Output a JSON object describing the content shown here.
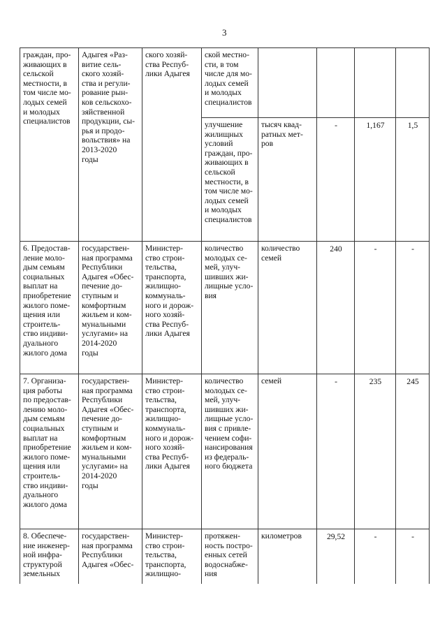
{
  "page_number": "3",
  "rows": [
    {
      "event": "граждан, про-\nживающих в\nсельской\nместности, в\nтом числе мо-\nлодых семей\nи молодых\nспециалистов",
      "program": "Адыгея «Раз-\nвитие сель-\nского хозяй-\nства и регули-\nрование рын-\nков сельскохо-\nзяйственной\nпродукции, сы-\nрья и продо-\nвольствия» на\n2013-2020\nгоды",
      "executor": "ского хозяй-\nства Респуб-\nлики Адыгея",
      "indicators": [
        {
          "name": "ской местно-\nсти, в том\nчисле для мо-\nлодых семей\nи молодых\nспециалистов",
          "unit": "",
          "v1": "",
          "v2": "",
          "v3": ""
        },
        {
          "name": "улучшение\nжилищных\nусловий\nграждан, про-\nживающих в\nсельской\nместности, в\nтом числе мо-\nлодых семей\nи молодых\nспециалистов",
          "unit": "тысяч квад-\nратных мет-\nров",
          "v1": "-",
          "v2": "1,167",
          "v3": "1,5"
        }
      ]
    },
    {
      "event": "6. Предостав-\nление моло-\nдым семьям\nсоциальных\nвыплат на\nприобретение\nжилого поме-\nщения или\nстроитель-\nство индиви-\nдуального\nжилого дома",
      "program": "государствен-\nная программа\nРеспублики\nАдыгея «Обес-\nпечение до-\nступным и\nкомфортным\nжильем и ком-\nмунальными\nуслугами» на\n2014-2020\nгоды",
      "executor": "Министер-\nство строи-\nтельства,\nтранспорта,\nжилищно-\nкоммуналь-\nного и дорож-\nного хозяй-\nства Респуб-\nлики Адыгея",
      "indicators": [
        {
          "name": "количество\nмолодых се-\nмей, улуч-\nшивших жи-\nлищные усло-\nвия",
          "unit": "количество\nсемей",
          "v1": "240",
          "v2": "-",
          "v3": "-"
        }
      ]
    },
    {
      "event": "7. Организа-\nция работы\nпо предостав-\nлению моло-\nдым семьям\nсоциальных\nвыплат на\nприобретение\nжилого поме-\nщения или\nстроитель-\nство индиви-\nдуального\nжилого дома",
      "program": "государствен-\nная программа\nРеспублики\nАдыгея «Обес-\nпечение до-\nступным и\nкомфортным\nжильем и ком-\nмунальными\nуслугами» на\n2014-2020\nгоды",
      "executor": "Министер-\nство строи-\nтельства,\nтранспорта,\nжилищно-\nкоммуналь-\nного и дорож-\nного хозяй-\nства Респуб-\nлики Адыгея",
      "indicators": [
        {
          "name": "количество\nмолодых се-\nмей, улуч-\nшивших жи-\nлищные усло-\nвия с привле-\nчением софи-\nнансирования\nиз федераль-\nного бюджета",
          "unit": "семей",
          "v1": "-",
          "v2": "235",
          "v3": "245"
        }
      ]
    },
    {
      "event": "8. Обеспече-\nние инженер-\nной инфра-\nструктурой\nземельных",
      "program": "государствен-\nная программа\nРеспублики\nАдыгея «Обес-",
      "executor": "Министер-\nство строи-\nтельства,\nтранспорта,\nжилищно-",
      "indicators": [
        {
          "name": "протяжен-\nность постро-\nенных сетей\nводоснабже-\nния",
          "unit": "километров",
          "v1": "29,52",
          "v2": "-",
          "v3": "-"
        }
      ]
    }
  ]
}
